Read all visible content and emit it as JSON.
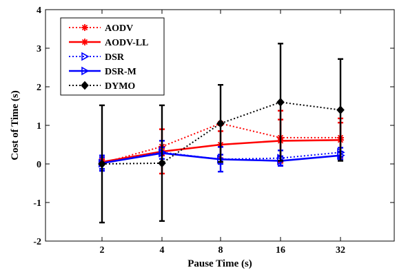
{
  "chart_data": {
    "type": "line",
    "xlabel": "Pause Time (s)",
    "ylabel": "Cost of Time (s)",
    "categories": [
      "2",
      "4",
      "8",
      "16",
      "32"
    ],
    "ylim": [
      -2,
      4
    ],
    "yticks": [
      -2,
      -1,
      0,
      1,
      2,
      3,
      4
    ],
    "grid": false,
    "legend_position": "top-left",
    "series": [
      {
        "name": "AODV",
        "color": "#ff0000",
        "line_style": "dotted",
        "marker": "asterisk",
        "values": [
          0.02,
          0.45,
          1.05,
          0.68,
          0.68
        ],
        "error": [
          [
            0.15,
            0.15
          ],
          [
            0.7,
            0.45
          ],
          [
            0,
            0
          ],
          [
            0.65,
            0.7
          ],
          [
            0.5,
            0.5
          ]
        ]
      },
      {
        "name": "AODV-LL",
        "color": "#ff0000",
        "line_style": "solid",
        "marker": "asterisk",
        "values": [
          0.05,
          0.32,
          0.5,
          0.6,
          0.62
        ],
        "error": [
          [
            0.07,
            0.07
          ],
          [
            0.1,
            0.1
          ],
          [
            0.35,
            0.35
          ],
          [
            0.55,
            0.55
          ],
          [
            0.45,
            0.45
          ]
        ]
      },
      {
        "name": "DSR",
        "color": "#0000ff",
        "line_style": "dotted",
        "marker": "triangle-right",
        "values": [
          0.02,
          0.3,
          0.12,
          0.15,
          0.3
        ],
        "error": [
          [
            0.2,
            0.2
          ],
          [
            0.3,
            0.3
          ],
          [
            0.32,
            0.32
          ],
          [
            0.2,
            0.2
          ],
          [
            0.12,
            0.12
          ]
        ]
      },
      {
        "name": "DSR-M",
        "color": "#0000ff",
        "line_style": "solid",
        "marker": "triangle-right",
        "values": [
          0.02,
          0.28,
          0.12,
          0.08,
          0.22
        ],
        "error": [
          [
            0.15,
            0.15
          ],
          [
            0.15,
            0.15
          ],
          [
            0.12,
            0.12
          ],
          [
            0.12,
            0.12
          ],
          [
            0.1,
            0.1
          ]
        ]
      },
      {
        "name": "DYMO",
        "color": "#000000",
        "line_style": "dotted",
        "marker": "diamond",
        "values": [
          0.0,
          0.02,
          1.05,
          1.6,
          1.4
        ],
        "error": [
          [
            1.52,
            1.52
          ],
          [
            1.5,
            1.5
          ],
          [
            1.0,
            1.0
          ],
          [
            1.52,
            1.52
          ],
          [
            1.32,
            1.32
          ]
        ]
      }
    ]
  }
}
